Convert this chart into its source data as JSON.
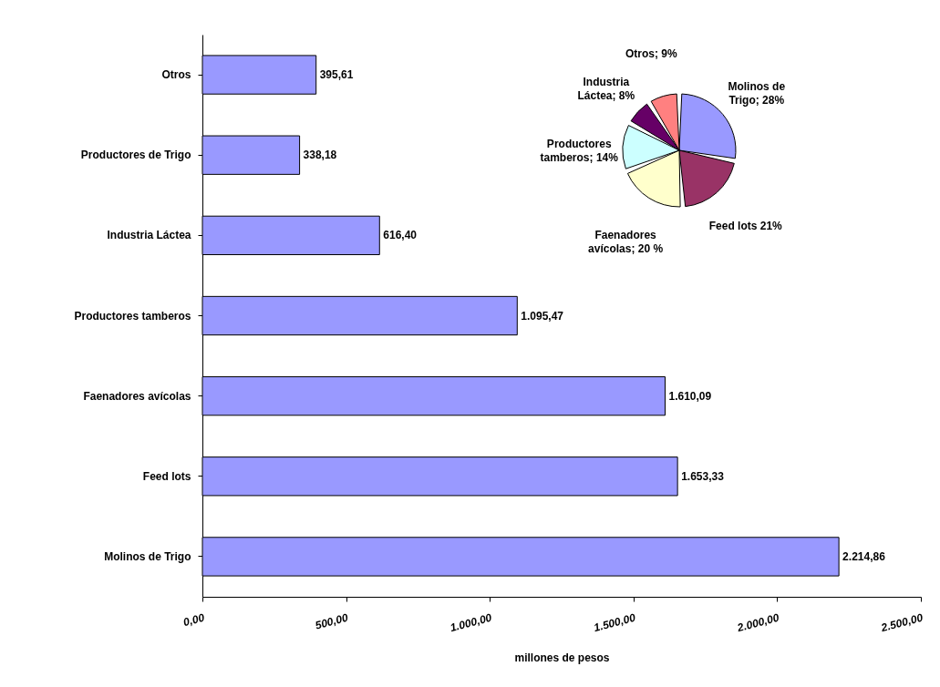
{
  "chart_data": [
    {
      "type": "bar",
      "orientation": "horizontal",
      "xlabel": "millones de pesos",
      "categories": [
        "Otros",
        "Productores de Trigo",
        "Industria Láctea",
        "Productores tamberos",
        "Faenadores avícolas",
        "Feed lots",
        "Molinos de Trigo"
      ],
      "values": [
        395.61,
        338.18,
        616.4,
        1095.47,
        1610.09,
        1653.33,
        2214.86
      ],
      "value_labels": [
        "395,61",
        "338,18",
        "616,40",
        "1.095,47",
        "1.610,09",
        "1.653,33",
        "2.214,86"
      ],
      "color": "#9999ff",
      "xlim": [
        0,
        2500
      ],
      "xticks": [
        {
          "value": 0,
          "label": "0,00"
        },
        {
          "value": 500,
          "label": "500,00"
        },
        {
          "value": 1000,
          "label": "1.000,00"
        },
        {
          "value": 1500,
          "label": "1.500,00"
        },
        {
          "value": 2000,
          "label": "2.000,00"
        },
        {
          "value": 2500,
          "label": "2.500,00"
        }
      ],
      "grid": false
    },
    {
      "type": "pie",
      "categories": [
        "Molinos de Trigo",
        "Feed lots",
        "Faenadores avícolas",
        "Productores tamberos",
        "Industria Láctea",
        "Otros"
      ],
      "values": [
        28,
        21,
        20,
        14,
        8,
        9
      ],
      "value_labels": [
        "; 28%",
        "21%",
        "; 20 %",
        "; 14%",
        "; 8%",
        "; 9%"
      ],
      "colors": [
        "#9999ff",
        "#993366",
        "#ffffcc",
        "#ccffff",
        "#660066",
        "#ff8080"
      ]
    }
  ]
}
